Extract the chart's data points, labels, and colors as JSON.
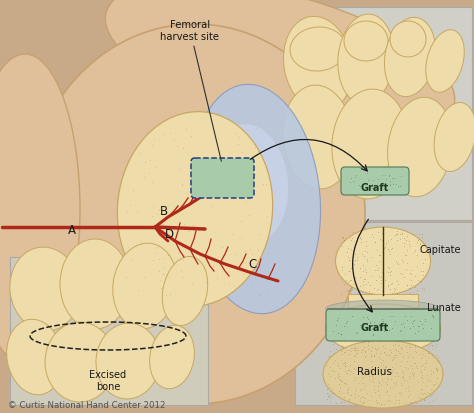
{
  "copyright": "© Curtis National Hand Center 2012",
  "labels": {
    "femoral_harvest": "Femoral\nharvest site",
    "A": "A",
    "B": "B",
    "C": "C",
    "D": "D",
    "graft_top": "Graft",
    "capitate": "Capitate",
    "lunate": "Lunate",
    "graft_bottom": "Graft",
    "radius": "Radius",
    "excised_bone": "Excised\nbone"
  },
  "bg_color": "#c8aa88",
  "flesh_color": "#dfc09a",
  "flesh_edge": "#c8a070",
  "blue_color": "#b8c8e0",
  "blue_edge": "#8898c0",
  "bone_color": "#eedcaa",
  "bone_edge": "#c8a860",
  "graft_color": "#a8ccaa",
  "graft_edge": "#507858",
  "vessel_color": "#b02818",
  "panel_bg_tr": "#d0d0c8",
  "panel_bg_br": "#c8c8c0",
  "panel_bg_bl": "#d0ccbc",
  "radius_color": "#d8c890",
  "radius_speck": "#908050",
  "arrow_color": "#181818",
  "text_color": "#181818",
  "copyright_color": "#505050",
  "fig_width": 4.74,
  "fig_height": 4.14,
  "dpi": 100
}
